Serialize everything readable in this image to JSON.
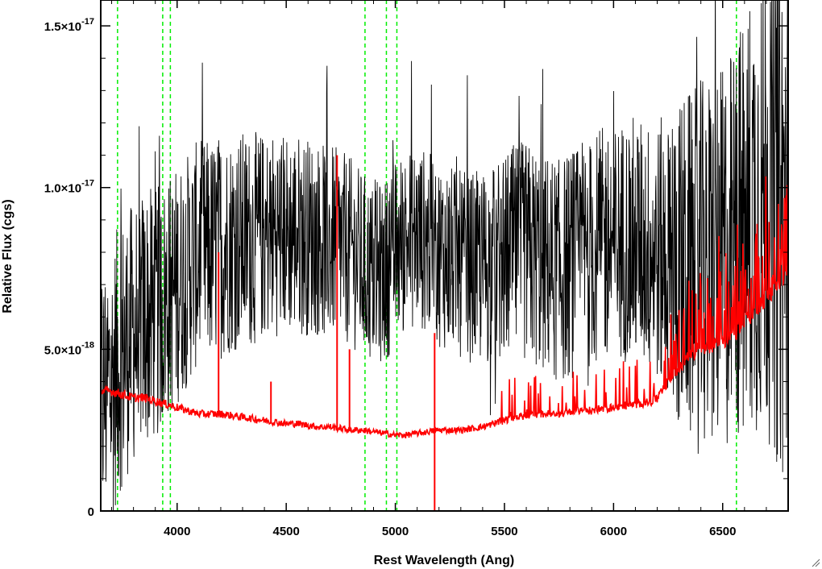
{
  "chart_data": {
    "type": "line",
    "xlabel": "Rest Wavelength (Ang)",
    "ylabel": "Relative Flux (cgs)",
    "xlim": [
      3650,
      6800
    ],
    "ylim": [
      0,
      1.58e-17
    ],
    "x_ticks": [
      {
        "value": 4000,
        "label": "4000"
      },
      {
        "value": 4500,
        "label": "4500"
      },
      {
        "value": 5000,
        "label": "5000"
      },
      {
        "value": 5500,
        "label": "5500"
      },
      {
        "value": 6000,
        "label": "6000"
      },
      {
        "value": 6500,
        "label": "6500"
      }
    ],
    "y_ticks": [
      {
        "value": 0,
        "mantissa": "0",
        "exponent": ""
      },
      {
        "value": 5e-18,
        "mantissa": "5.0×10",
        "exponent": "-18"
      },
      {
        "value": 1e-17,
        "mantissa": "1.0×10",
        "exponent": "-17"
      },
      {
        "value": 1.5e-17,
        "mantissa": "1.5×10",
        "exponent": "-17"
      }
    ],
    "grid": false,
    "series": [
      {
        "role": "spectrum",
        "color": "#000000",
        "x": [
          3650,
          3700,
          3750,
          3800,
          3850,
          3900,
          3950,
          4000,
          4050,
          4100,
          4150,
          4200,
          4250,
          4300,
          4350,
          4400,
          4450,
          4500,
          4550,
          4600,
          4650,
          4700,
          4750,
          4800,
          4850,
          4900,
          4950,
          5000,
          5050,
          5100,
          5150,
          5200,
          5250,
          5300,
          5350,
          5400,
          5450,
          5500,
          5550,
          5600,
          5650,
          5700,
          5750,
          5800,
          5850,
          5900,
          5950,
          6000,
          6050,
          6100,
          6150,
          6200,
          6250,
          6300,
          6350,
          6400,
          6450,
          6500,
          6550,
          6600,
          6650,
          6700,
          6750,
          6800
        ],
        "y": [
          3.5e-18,
          4e-18,
          5e-18,
          5.5e-18,
          6e-18,
          6e-18,
          6.5e-18,
          7e-18,
          7.5e-18,
          8e-18,
          8e-18,
          8.2e-18,
          8.3e-18,
          8.4e-18,
          8.4e-18,
          8.5e-18,
          8.6e-18,
          8.6e-18,
          8.6e-18,
          8.5e-18,
          8.4e-18,
          8.3e-18,
          8.2e-18,
          8e-18,
          7.6e-18,
          7.3e-18,
          7.4e-18,
          8e-18,
          8.4e-18,
          8.5e-18,
          8.3e-18,
          8e-18,
          7.8e-18,
          7.6e-18,
          7.5e-18,
          7.5e-18,
          7.6e-18,
          7.8e-18,
          8e-18,
          8e-18,
          7.8e-18,
          7.6e-18,
          7.4e-18,
          7.6e-18,
          7.8e-18,
          8e-18,
          8.2e-18,
          8.3e-18,
          8.4e-18,
          8.4e-18,
          8.2e-18,
          8e-18,
          7.8e-18,
          7.6e-18,
          7.5e-18,
          7.5e-18,
          7.6e-18,
          7.8e-18,
          8.2e-18,
          8.8e-18,
          9.5e-18,
          1e-17,
          9.5e-18,
          9e-18
        ]
      },
      {
        "role": "error",
        "color": "#ff0000",
        "x": [
          3650,
          3700,
          3750,
          3800,
          3850,
          3900,
          3950,
          4000,
          4050,
          4100,
          4150,
          4200,
          4250,
          4300,
          4350,
          4400,
          4450,
          4500,
          4550,
          4600,
          4650,
          4700,
          4750,
          4800,
          4850,
          4900,
          4950,
          5000,
          5050,
          5100,
          5150,
          5200,
          5250,
          5300,
          5350,
          5400,
          5450,
          5500,
          5550,
          5600,
          5650,
          5700,
          5750,
          5800,
          5850,
          5900,
          5950,
          6000,
          6050,
          6100,
          6150,
          6200,
          6250,
          6300,
          6350,
          6400,
          6450,
          6500,
          6550,
          6600,
          6650,
          6700,
          6750,
          6800
        ],
        "y": [
          3.7e-18,
          3.7e-18,
          3.6e-18,
          3.5e-18,
          3.5e-18,
          3.4e-18,
          3.3e-18,
          3.2e-18,
          3.1e-18,
          3e-18,
          3e-18,
          3e-18,
          2.95e-18,
          2.9e-18,
          2.85e-18,
          2.8e-18,
          2.75e-18,
          2.7e-18,
          2.7e-18,
          2.65e-18,
          2.6e-18,
          2.6e-18,
          2.55e-18,
          2.5e-18,
          2.5e-18,
          2.45e-18,
          2.4e-18,
          2.35e-18,
          2.35e-18,
          2.4e-18,
          2.45e-18,
          2.5e-18,
          2.5e-18,
          2.5e-18,
          2.55e-18,
          2.6e-18,
          2.7e-18,
          2.8e-18,
          2.9e-18,
          2.95e-18,
          3e-18,
          3e-18,
          3e-18,
          3.05e-18,
          3.1e-18,
          3.1e-18,
          3.15e-18,
          3.2e-18,
          3.25e-18,
          3.3e-18,
          3.35e-18,
          3.45e-18,
          4e-18,
          4.4e-18,
          4.8e-18,
          5e-18,
          5.1e-18,
          5.2e-18,
          5.4e-18,
          5.8e-18,
          6.2e-18,
          6.6e-18,
          7e-18,
          7.4e-18
        ]
      }
    ],
    "reference_lines": {
      "color": "#00ee00",
      "style": "dashed",
      "x": [
        3727,
        3934,
        3969,
        4861,
        4959,
        5007,
        6563
      ]
    },
    "error_spikes": [
      {
        "x": 4190,
        "y": 8e-18
      },
      {
        "x": 4430,
        "y": 4e-18
      },
      {
        "x": 4733,
        "y": 1.1e-17
      },
      {
        "x": 4790,
        "y": 5e-18
      },
      {
        "x": 5180,
        "y": 5.5e-18
      },
      {
        "x": 5180,
        "y": -1e-19
      }
    ]
  }
}
